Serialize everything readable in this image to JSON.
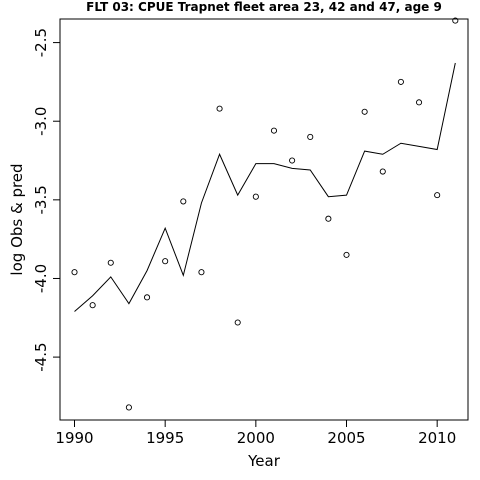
{
  "chart_data": {
    "type": "line",
    "title": "FLT 03: CPUE Trapnet fleet area 23, 42 and 47, age 9",
    "xlabel": "Year",
    "ylabel": "log Obs & pred",
    "xlim": [
      1989.2,
      2011.7
    ],
    "ylim": [
      -4.9,
      -2.35
    ],
    "x_ticks": [
      1990,
      1995,
      2000,
      2005,
      2010
    ],
    "x_tick_labels": [
      "1990",
      "1995",
      "2000",
      "2005",
      "2010"
    ],
    "y_ticks": [
      -4.5,
      -4.0,
      -3.5,
      -3.0,
      -2.5
    ],
    "y_tick_labels": [
      "-4.5",
      "-4.0",
      "-3.5",
      "-3.0",
      "-2.5"
    ],
    "grid": false,
    "series": [
      {
        "kind": "points",
        "style": "open-circle",
        "x": [
          1990,
          1991,
          1992,
          1993,
          1994,
          1995,
          1996,
          1997,
          1998,
          1999,
          2000,
          2001,
          2002,
          2003,
          2004,
          2005,
          2006,
          2007,
          2008,
          2009,
          2010,
          2011
        ],
        "y": [
          -3.96,
          -4.17,
          -3.9,
          -4.82,
          -4.12,
          -3.89,
          -3.51,
          -3.96,
          -2.92,
          -4.28,
          -3.48,
          -3.06,
          -3.25,
          -3.1,
          -3.62,
          -3.85,
          -2.94,
          -3.32,
          -2.75,
          -2.88,
          -3.47,
          -2.36
        ]
      },
      {
        "kind": "line",
        "style": "solid",
        "x": [
          1990,
          1991,
          1992,
          1993,
          1994,
          1995,
          1996,
          1997,
          1998,
          1999,
          2000,
          2001,
          2002,
          2003,
          2004,
          2005,
          2006,
          2007,
          2008,
          2009,
          2010,
          2011
        ],
        "y": [
          -4.21,
          -4.11,
          -3.99,
          -4.16,
          -3.95,
          -3.68,
          -3.98,
          -3.52,
          -3.21,
          -3.47,
          -3.27,
          -3.27,
          -3.3,
          -3.31,
          -3.48,
          -3.47,
          -3.19,
          -3.21,
          -3.14,
          -3.16,
          -3.18,
          -2.63
        ]
      }
    ]
  }
}
